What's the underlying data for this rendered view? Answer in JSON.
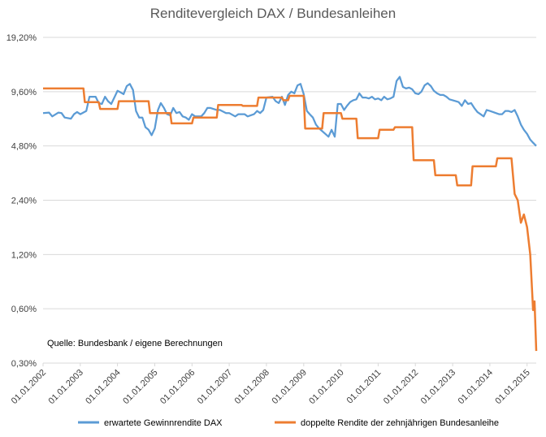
{
  "chart_data": {
    "type": "line",
    "title": "Renditevergleich DAX / Bundesanleihen",
    "xlabel": "",
    "ylabel": "",
    "y_scale": "log2",
    "y_ticks": [
      0.3,
      0.6,
      1.2,
      2.4,
      4.8,
      9.6,
      19.2
    ],
    "y_tick_labels": [
      "0,30%",
      "0,60%",
      "1,20%",
      "2,40%",
      "4,80%",
      "9,60%",
      "19,20%"
    ],
    "ylim": [
      0.3,
      19.2
    ],
    "xlim": [
      "2002-01-01",
      "2015-04-01"
    ],
    "x_tick_labels": [
      "01.01.2002",
      "01.01.2003",
      "01.01.2004",
      "01.01.2005",
      "01.01.2006",
      "01.01.2007",
      "01.01.2008",
      "01.01.2009",
      "01.01.2010",
      "01.01.2011",
      "01.01.2012",
      "01.01.2013",
      "01.01.2014",
      "01.01.2015"
    ],
    "grid": "horizontal",
    "legend_position": "bottom",
    "annotation": "Quelle: Bundesbank / eigene Berechnungen",
    "colors": {
      "dax": "#5b9bd5",
      "bund": "#ed7d31"
    },
    "series": [
      {
        "name": "erwartete Gewinnrendite DAX",
        "points": [
          [
            "2002-01-01",
            7.3
          ],
          [
            "2002-03-01",
            7.35
          ],
          [
            "2002-04-01",
            7.0
          ],
          [
            "2002-06-01",
            7.35
          ],
          [
            "2002-07-01",
            7.3
          ],
          [
            "2002-08-01",
            6.9
          ],
          [
            "2002-10-01",
            6.8
          ],
          [
            "2002-11-01",
            7.2
          ],
          [
            "2002-12-01",
            7.4
          ],
          [
            "2003-01-01",
            7.2
          ],
          [
            "2003-03-01",
            7.5
          ],
          [
            "2003-04-01",
            9.0
          ],
          [
            "2003-05-01",
            9.0
          ],
          [
            "2003-06-01",
            9.0
          ],
          [
            "2003-07-01",
            8.3
          ],
          [
            "2003-08-01",
            8.2
          ],
          [
            "2003-09-01",
            9.0
          ],
          [
            "2003-10-01",
            8.5
          ],
          [
            "2003-11-01",
            8.2
          ],
          [
            "2003-12-01",
            8.9
          ],
          [
            "2004-01-01",
            9.7
          ],
          [
            "2004-02-01",
            9.5
          ],
          [
            "2004-03-01",
            9.3
          ],
          [
            "2004-04-01",
            10.3
          ],
          [
            "2004-05-01",
            10.6
          ],
          [
            "2004-06-01",
            9.8
          ],
          [
            "2004-07-01",
            7.5
          ],
          [
            "2004-08-01",
            6.9
          ],
          [
            "2004-09-01",
            6.9
          ],
          [
            "2004-10-01",
            6.1
          ],
          [
            "2004-11-01",
            5.9
          ],
          [
            "2004-12-01",
            5.5
          ],
          [
            "2005-01-01",
            6.0
          ],
          [
            "2005-02-01",
            7.6
          ],
          [
            "2005-03-01",
            8.3
          ],
          [
            "2005-04-01",
            7.8
          ],
          [
            "2005-05-01",
            7.2
          ],
          [
            "2005-06-01",
            7.1
          ],
          [
            "2005-07-01",
            7.8
          ],
          [
            "2005-08-01",
            7.3
          ],
          [
            "2005-09-01",
            7.4
          ],
          [
            "2005-10-01",
            7.0
          ],
          [
            "2005-11-01",
            6.9
          ],
          [
            "2005-12-01",
            6.7
          ],
          [
            "2006-01-01",
            7.2
          ],
          [
            "2006-02-01",
            7.0
          ],
          [
            "2006-04-01",
            7.0
          ],
          [
            "2006-05-01",
            7.3
          ],
          [
            "2006-06-01",
            7.8
          ],
          [
            "2006-07-01",
            7.8
          ],
          [
            "2006-09-01",
            7.6
          ],
          [
            "2006-10-01",
            7.6
          ],
          [
            "2006-12-01",
            7.3
          ],
          [
            "2007-01-01",
            7.3
          ],
          [
            "2007-03-01",
            7.0
          ],
          [
            "2007-04-01",
            7.2
          ],
          [
            "2007-06-01",
            7.2
          ],
          [
            "2007-07-01",
            7.0
          ],
          [
            "2007-09-01",
            7.2
          ],
          [
            "2007-10-01",
            7.5
          ],
          [
            "2007-11-01",
            7.3
          ],
          [
            "2007-12-01",
            7.6
          ],
          [
            "2008-01-01",
            8.9
          ],
          [
            "2008-03-01",
            9.0
          ],
          [
            "2008-04-01",
            8.5
          ],
          [
            "2008-05-01",
            8.3
          ],
          [
            "2008-06-01",
            9.0
          ],
          [
            "2008-07-01",
            8.1
          ],
          [
            "2008-08-01",
            9.2
          ],
          [
            "2008-09-01",
            9.6
          ],
          [
            "2008-10-01",
            9.4
          ],
          [
            "2008-11-01",
            10.4
          ],
          [
            "2008-12-01",
            10.6
          ],
          [
            "2009-01-01",
            9.3
          ],
          [
            "2009-02-01",
            7.5
          ],
          [
            "2009-03-01",
            7.2
          ],
          [
            "2009-04-01",
            6.9
          ],
          [
            "2009-05-01",
            6.3
          ],
          [
            "2009-06-01",
            6.0
          ],
          [
            "2009-07-01",
            5.8
          ],
          [
            "2009-08-01",
            5.6
          ],
          [
            "2009-09-01",
            5.4
          ],
          [
            "2009-10-01",
            5.9
          ],
          [
            "2009-11-01",
            5.4
          ],
          [
            "2009-12-01",
            8.2
          ],
          [
            "2010-01-01",
            8.2
          ],
          [
            "2010-02-01",
            7.6
          ],
          [
            "2010-03-01",
            8.0
          ],
          [
            "2010-04-01",
            8.4
          ],
          [
            "2010-05-01",
            8.6
          ],
          [
            "2010-06-01",
            8.7
          ],
          [
            "2010-07-01",
            9.4
          ],
          [
            "2010-08-01",
            8.9
          ],
          [
            "2010-09-01",
            8.9
          ],
          [
            "2010-10-01",
            8.8
          ],
          [
            "2010-11-01",
            9.0
          ],
          [
            "2010-12-01",
            8.7
          ],
          [
            "2011-01-01",
            8.8
          ],
          [
            "2011-02-01",
            8.6
          ],
          [
            "2011-03-01",
            9.0
          ],
          [
            "2011-04-01",
            8.7
          ],
          [
            "2011-05-01",
            8.8
          ],
          [
            "2011-06-01",
            9.0
          ],
          [
            "2011-07-01",
            11.0
          ],
          [
            "2011-08-01",
            11.6
          ],
          [
            "2011-09-01",
            10.2
          ],
          [
            "2011-10-01",
            10.0
          ],
          [
            "2011-11-01",
            10.1
          ],
          [
            "2011-12-01",
            9.9
          ],
          [
            "2012-01-01",
            9.4
          ],
          [
            "2012-02-01",
            9.3
          ],
          [
            "2012-03-01",
            9.6
          ],
          [
            "2012-04-01",
            10.4
          ],
          [
            "2012-05-01",
            10.7
          ],
          [
            "2012-06-01",
            10.3
          ],
          [
            "2012-07-01",
            9.7
          ],
          [
            "2012-08-01",
            9.4
          ],
          [
            "2012-09-01",
            9.2
          ],
          [
            "2012-10-01",
            9.2
          ],
          [
            "2012-11-01",
            9.0
          ],
          [
            "2012-12-01",
            8.7
          ],
          [
            "2013-01-01",
            8.6
          ],
          [
            "2013-02-01",
            8.5
          ],
          [
            "2013-03-01",
            8.4
          ],
          [
            "2013-04-01",
            8.0
          ],
          [
            "2013-05-01",
            8.6
          ],
          [
            "2013-06-01",
            8.2
          ],
          [
            "2013-07-01",
            8.3
          ],
          [
            "2013-08-01",
            7.8
          ],
          [
            "2013-09-01",
            7.4
          ],
          [
            "2013-10-01",
            7.2
          ],
          [
            "2013-11-01",
            7.0
          ],
          [
            "2013-12-01",
            7.6
          ],
          [
            "2014-01-01",
            7.5
          ],
          [
            "2014-02-01",
            7.4
          ],
          [
            "2014-03-01",
            7.3
          ],
          [
            "2014-04-01",
            7.2
          ],
          [
            "2014-05-01",
            7.2
          ],
          [
            "2014-06-01",
            7.5
          ],
          [
            "2014-07-01",
            7.5
          ],
          [
            "2014-08-01",
            7.4
          ],
          [
            "2014-09-01",
            7.6
          ],
          [
            "2014-10-01",
            7.0
          ],
          [
            "2014-11-01",
            6.3
          ],
          [
            "2014-12-01",
            5.9
          ],
          [
            "2015-01-01",
            5.6
          ],
          [
            "2015-02-01",
            5.2
          ],
          [
            "2015-03-01",
            5.0
          ],
          [
            "2015-04-01",
            4.8
          ]
        ]
      },
      {
        "name": "doppelte Rendite der zehnjährigen Bundesanleihe",
        "points": [
          [
            "2002-01-01",
            10.0
          ],
          [
            "2003-02-01",
            10.0
          ],
          [
            "2003-02-15",
            8.4
          ],
          [
            "2003-07-01",
            8.4
          ],
          [
            "2003-07-15",
            7.7
          ],
          [
            "2004-01-01",
            7.7
          ],
          [
            "2004-01-15",
            8.5
          ],
          [
            "2004-10-01",
            8.5
          ],
          [
            "2004-11-01",
            8.5
          ],
          [
            "2004-11-15",
            7.3
          ],
          [
            "2005-06-01",
            7.3
          ],
          [
            "2005-06-15",
            6.4
          ],
          [
            "2006-01-01",
            6.4
          ],
          [
            "2006-01-15",
            6.9
          ],
          [
            "2006-09-01",
            6.9
          ],
          [
            "2006-09-15",
            8.1
          ],
          [
            "2007-05-01",
            8.1
          ],
          [
            "2007-05-15",
            8.0
          ],
          [
            "2007-10-01",
            8.0
          ],
          [
            "2007-10-15",
            8.9
          ],
          [
            "2008-06-01",
            8.9
          ],
          [
            "2008-06-15",
            8.6
          ],
          [
            "2008-08-01",
            8.6
          ],
          [
            "2008-08-15",
            9.1
          ],
          [
            "2009-01-01",
            9.1
          ],
          [
            "2009-01-15",
            6.0
          ],
          [
            "2009-07-01",
            6.0
          ],
          [
            "2009-07-15",
            7.3
          ],
          [
            "2010-01-01",
            7.3
          ],
          [
            "2010-01-15",
            6.8
          ],
          [
            "2010-06-01",
            6.8
          ],
          [
            "2010-06-15",
            5.3
          ],
          [
            "2011-01-01",
            5.3
          ],
          [
            "2011-01-15",
            5.9
          ],
          [
            "2011-06-01",
            5.9
          ],
          [
            "2011-06-15",
            6.1
          ],
          [
            "2011-12-01",
            6.1
          ],
          [
            "2011-12-15",
            4.0
          ],
          [
            "2012-07-01",
            4.0
          ],
          [
            "2012-07-15",
            3.3
          ],
          [
            "2013-02-01",
            3.3
          ],
          [
            "2013-02-15",
            2.9
          ],
          [
            "2013-07-01",
            2.9
          ],
          [
            "2013-07-15",
            3.7
          ],
          [
            "2014-03-01",
            3.7
          ],
          [
            "2014-03-15",
            4.1
          ],
          [
            "2014-08-01",
            4.1
          ],
          [
            "2014-09-01",
            2.6
          ],
          [
            "2014-10-01",
            2.4
          ],
          [
            "2014-11-01",
            1.8
          ],
          [
            "2014-12-01",
            2.0
          ],
          [
            "2015-01-01",
            1.7
          ],
          [
            "2015-02-01",
            1.2
          ],
          [
            "2015-03-01",
            0.59
          ],
          [
            "2015-03-15",
            0.66
          ],
          [
            "2015-04-01",
            0.35
          ]
        ]
      }
    ]
  }
}
